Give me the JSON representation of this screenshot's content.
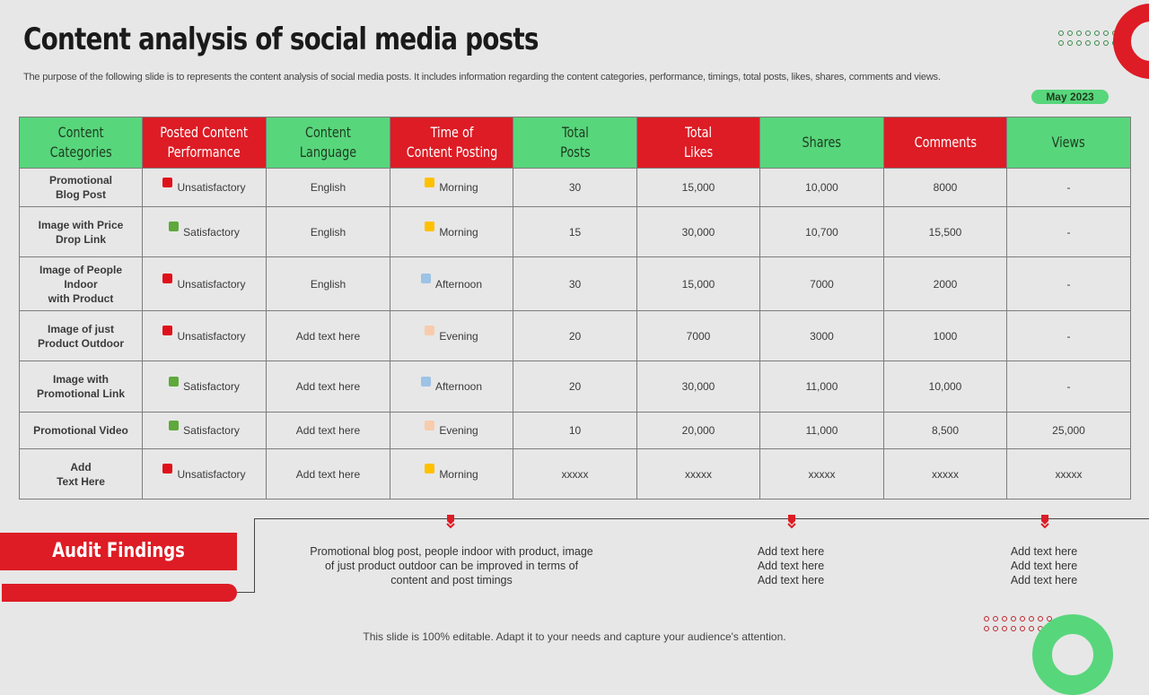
{
  "title": "Content analysis of social media posts",
  "subtitle": "The purpose of the following slide is to represents the content analysis of social media posts. It includes information regarding the content categories, performance, timings, total posts, likes, shares, comments and views.",
  "date_badge": "May 2023",
  "table": {
    "headers": [
      {
        "label": "Content\nCategories",
        "color": "#58d67c"
      },
      {
        "label": "Posted Content\nPerformance",
        "color": "#dd1c25"
      },
      {
        "label": "Content\nLanguage",
        "color": "#58d67c"
      },
      {
        "label": "Time of\nContent Posting",
        "color": "#dd1c25"
      },
      {
        "label": "Total\nPosts",
        "color": "#58d67c"
      },
      {
        "label": "Total\nLikes",
        "color": "#dd1c25"
      },
      {
        "label": "Shares",
        "color": "#58d67c"
      },
      {
        "label": "Comments",
        "color": "#dd1c25"
      },
      {
        "label": "Views",
        "color": "#58d67c"
      }
    ],
    "rows": [
      {
        "category": "Promotional\nBlog Post",
        "performance": "Unsatisfactory",
        "perf_color": "#e0101a",
        "language": "English",
        "time": "Morning",
        "time_color": "#ffc000",
        "posts": "30",
        "likes": "15,000",
        "shares": "10,000",
        "comments": "8000",
        "views": "-"
      },
      {
        "category": "Image with Price\nDrop Link",
        "performance": "Satisfactory",
        "perf_color": "#5fa83c",
        "language": "English",
        "time": "Morning",
        "time_color": "#ffc000",
        "posts": "15",
        "likes": "30,000",
        "shares": "10,700",
        "comments": "15,500",
        "views": "-"
      },
      {
        "category": "Image of People\nIndoor\nwith Product",
        "performance": "Unsatisfactory",
        "perf_color": "#e0101a",
        "language": "English",
        "time": "Afternoon",
        "time_color": "#9dc3e6",
        "posts": "30",
        "likes": "15,000",
        "shares": "7000",
        "comments": "2000",
        "views": "-"
      },
      {
        "category": "Image of just\nProduct Outdoor",
        "performance": "Unsatisfactory",
        "perf_color": "#e0101a",
        "language": "Add text here",
        "time": "Evening",
        "time_color": "#f8cbad",
        "posts": "20",
        "likes": "7000",
        "shares": "3000",
        "comments": "1000",
        "views": "-"
      },
      {
        "category": "Image with\nPromotional Link",
        "performance": "Satisfactory",
        "perf_color": "#5fa83c",
        "language": "Add text here",
        "time": "Afternoon",
        "time_color": "#9dc3e6",
        "posts": "20",
        "likes": "30,000",
        "shares": "11,000",
        "comments": "10,000",
        "views": "-"
      },
      {
        "category": "Promotional Video",
        "performance": "Satisfactory",
        "perf_color": "#5fa83c",
        "language": "Add text here",
        "time": "Evening",
        "time_color": "#f8cbad",
        "posts": "10",
        "likes": "20,000",
        "shares": "11,000",
        "comments": "8,500",
        "views": "25,000"
      },
      {
        "category": "Add\nText Here",
        "performance": "Unsatisfactory",
        "perf_color": "#e0101a",
        "language": "Add text here",
        "time": "Morning",
        "time_color": "#ffc000",
        "posts": "xxxxx",
        "likes": "xxxxx",
        "shares": "xxxxx",
        "comments": "xxxxx",
        "views": "xxxxx"
      }
    ]
  },
  "audit": {
    "label": "Audit Findings",
    "findings": [
      "Promotional blog post, people indoor with product, image\nof just product outdoor can be improved  in terms of\ncontent and post timings",
      "Add text here\nAdd text here\nAdd text here",
      "Add text here\nAdd text here\nAdd text here"
    ]
  },
  "footer": "This slide is 100% editable. Adapt it to your needs and capture your audience's attention.",
  "colors": {
    "green": "#58d67c",
    "red": "#dd1c25",
    "background": "#e7e7e7"
  }
}
